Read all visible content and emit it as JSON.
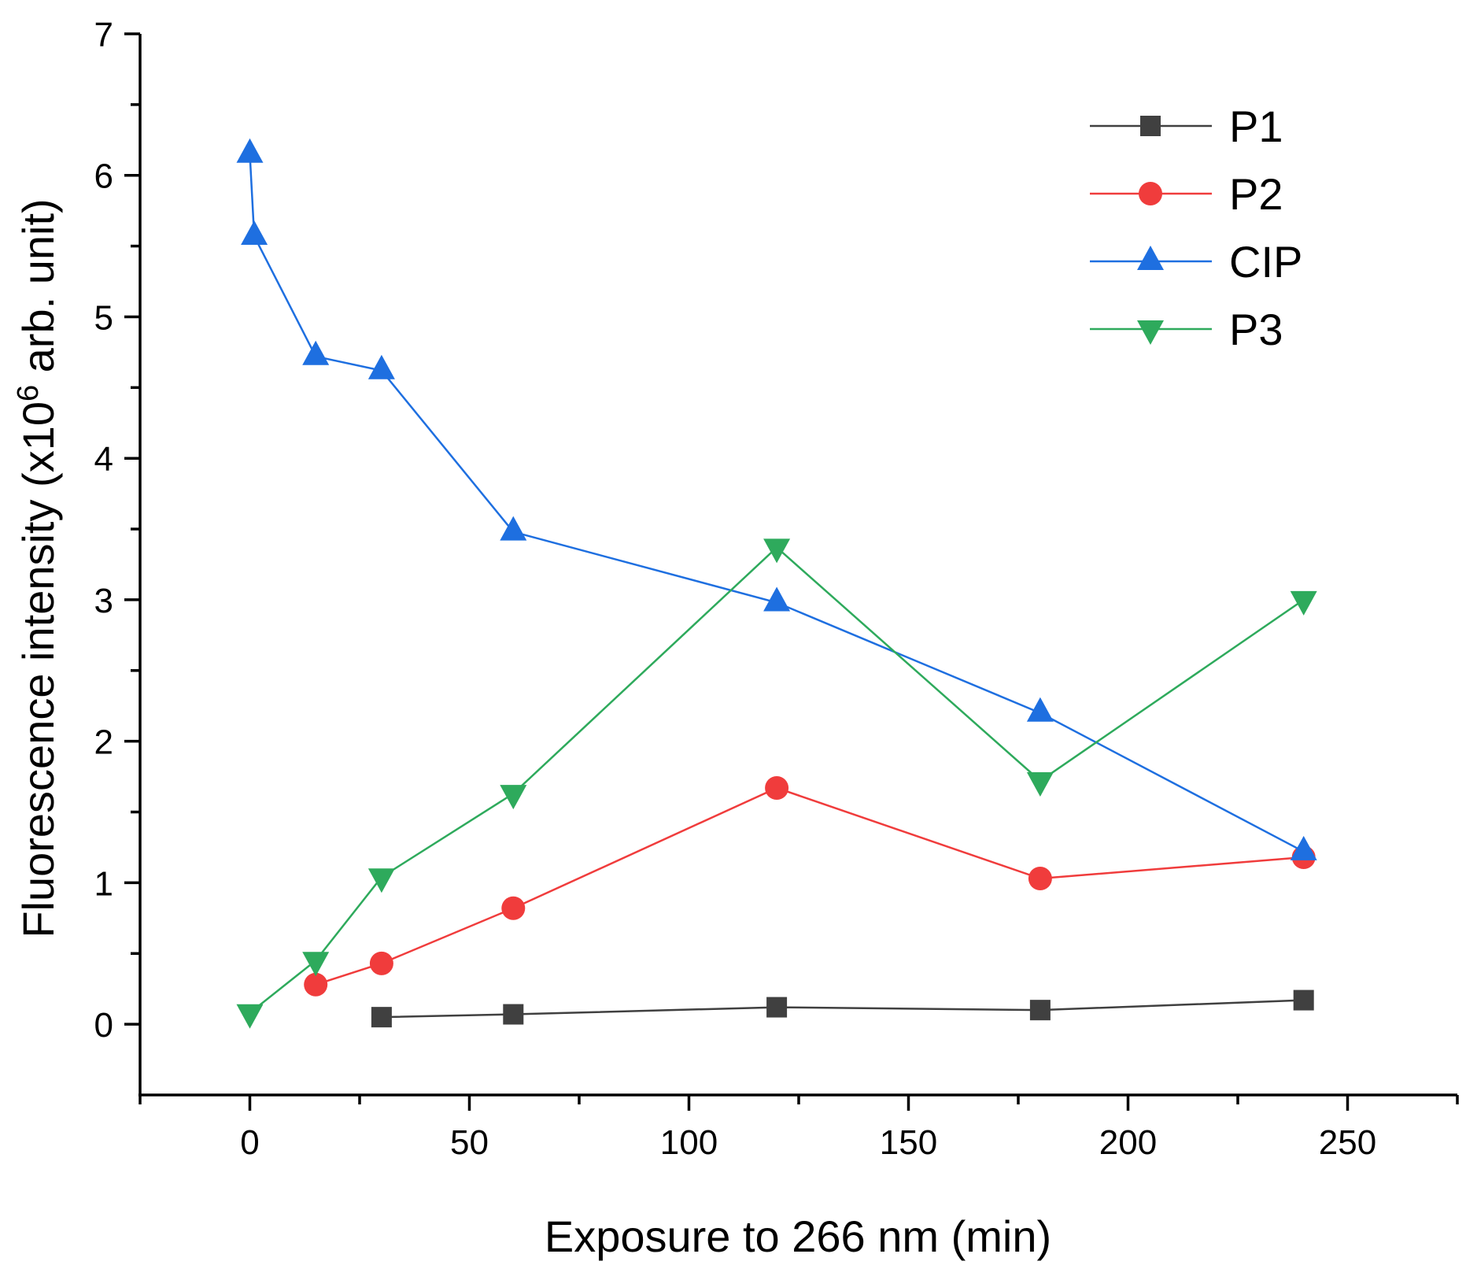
{
  "chart_data": {
    "type": "line",
    "title": "",
    "xlabel": "Exposure to 266 nm (min)",
    "ylabel_main": "Fluorescence intensity (x10",
    "ylabel_superscript": "6",
    "ylabel_suffix": " arb. unit)",
    "xlim": [
      -25,
      275
    ],
    "ylim": [
      -0.5,
      7
    ],
    "x_ticks": [
      0,
      50,
      100,
      150,
      200,
      250
    ],
    "x_tick_labels": [
      "0",
      "50",
      "100",
      "150",
      "200",
      "250"
    ],
    "y_ticks": [
      0,
      1,
      2,
      3,
      4,
      5,
      6,
      7
    ],
    "y_tick_labels": [
      "0",
      "1",
      "2",
      "3",
      "4",
      "5",
      "6",
      "7"
    ],
    "grid": false,
    "legend_position": "top-right",
    "series": [
      {
        "name": "P1",
        "color": "#404040",
        "marker": "square",
        "x": [
          30,
          60,
          120,
          180,
          240
        ],
        "y": [
          0.05,
          0.07,
          0.12,
          0.1,
          0.17
        ]
      },
      {
        "name": "P2",
        "color": "#f03c3c",
        "marker": "circle",
        "x": [
          15,
          30,
          60,
          120,
          180,
          240
        ],
        "y": [
          0.28,
          0.43,
          0.82,
          1.67,
          1.03,
          1.18
        ]
      },
      {
        "name": "CIP",
        "color": "#1e6fe0",
        "marker": "triangle-up",
        "x": [
          0,
          1,
          15,
          30,
          60,
          120,
          180,
          240
        ],
        "y": [
          6.15,
          5.57,
          4.72,
          4.62,
          3.48,
          2.98,
          2.2,
          1.22
        ]
      },
      {
        "name": "P3",
        "color": "#2eaa5c",
        "marker": "triangle-down",
        "x": [
          0,
          15,
          30,
          60,
          120,
          180,
          240
        ],
        "y": [
          0.08,
          0.45,
          1.04,
          1.63,
          3.37,
          1.72,
          3.0
        ]
      }
    ]
  }
}
